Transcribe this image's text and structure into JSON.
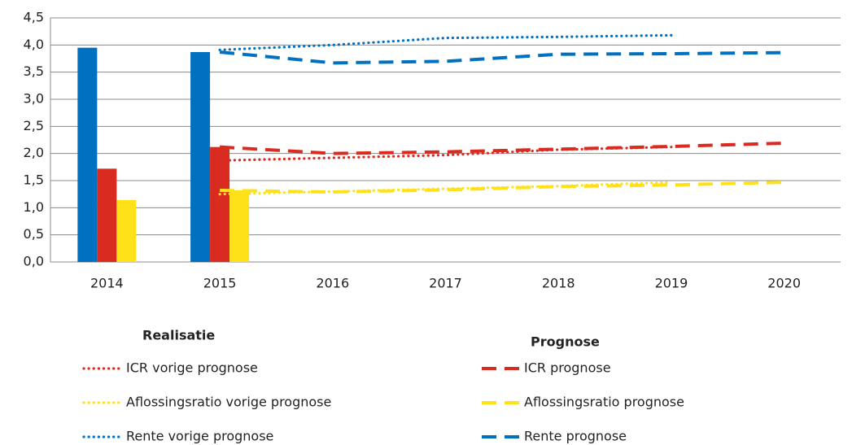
{
  "chart_data": {
    "type": "bar",
    "categories": [
      "2014",
      "2015",
      "2016",
      "2017",
      "2018",
      "2019",
      "2020"
    ],
    "ylim": [
      0,
      4.5
    ],
    "yticks": [
      {
        "value": 0,
        "label": "0,0"
      },
      {
        "value": 0.5,
        "label": "0,5"
      },
      {
        "value": 1,
        "label": "1,0"
      },
      {
        "value": 1.5,
        "label": "1,5"
      },
      {
        "value": 2,
        "label": "2,0"
      },
      {
        "value": 2.5,
        "label": "2,5"
      },
      {
        "value": 3,
        "label": "3,0"
      },
      {
        "value": 3.5,
        "label": "3,5"
      },
      {
        "value": 4,
        "label": "4,0"
      },
      {
        "value": 4.5,
        "label": "4,5"
      }
    ],
    "grid": true,
    "legend_titles": [
      "Realisatie",
      "Prognose"
    ],
    "series": [
      {
        "type": "bar",
        "color": "#0070c0",
        "values": [
          3.95,
          3.87,
          null,
          null,
          null,
          null,
          null
        ]
      },
      {
        "type": "bar",
        "color": "#d92b20",
        "values": [
          1.72,
          2.12,
          null,
          null,
          null,
          null,
          null
        ]
      },
      {
        "type": "bar",
        "color": "#ffe11a",
        "values": [
          1.14,
          1.32,
          null,
          null,
          null,
          null,
          null
        ]
      },
      {
        "type": "line",
        "name": "ICR vorige prognose",
        "color": "#d92b20",
        "line_style": "dotted",
        "values": [
          null,
          1.87,
          1.92,
          1.97,
          2.07,
          2.12,
          null
        ]
      },
      {
        "type": "line",
        "name": "Aflossingsratio vorige prognose",
        "color": "#ffe11a",
        "line_style": "dotted",
        "values": [
          null,
          1.25,
          1.3,
          1.35,
          1.4,
          1.47,
          null
        ]
      },
      {
        "type": "line",
        "name": "Rente vorige prognose",
        "color": "#0070c0",
        "line_style": "dotted",
        "values": [
          null,
          3.91,
          4.0,
          4.13,
          4.15,
          4.18,
          null
        ]
      },
      {
        "type": "line",
        "name": "ICR prognose",
        "color": "#d92b20",
        "line_style": "dashed",
        "values": [
          null,
          2.12,
          2.0,
          2.03,
          2.08,
          2.13,
          2.19
        ]
      },
      {
        "type": "line",
        "name": "Aflossingsratio prognose",
        "color": "#ffe11a",
        "line_style": "dashed",
        "values": [
          null,
          1.32,
          1.29,
          1.33,
          1.39,
          1.42,
          1.47
        ]
      },
      {
        "type": "line",
        "name": "Rente prognose",
        "color": "#0070c0",
        "line_style": "dashed",
        "values": [
          null,
          3.87,
          3.67,
          3.7,
          3.83,
          3.84,
          3.86
        ]
      }
    ]
  }
}
